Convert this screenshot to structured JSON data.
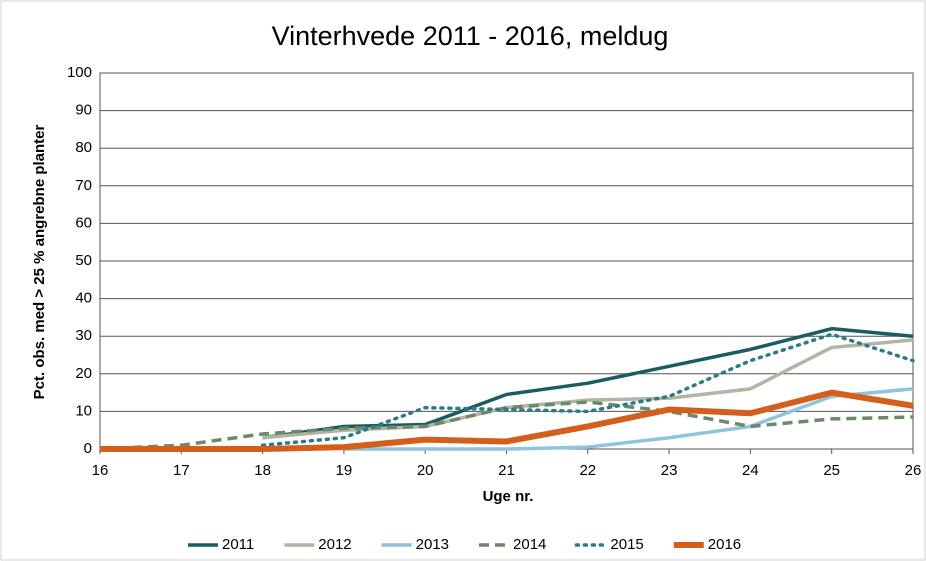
{
  "chart_data": {
    "type": "line",
    "title": "Vinterhvede 2011 - 2016, meldug",
    "x_label": "Uge nr.",
    "y_label": "Pct. obs. med > 25 % angrebne planter",
    "x": [
      16,
      17,
      18,
      19,
      20,
      21,
      22,
      23,
      24,
      25,
      26
    ],
    "xlim": [
      16,
      26
    ],
    "xticks": [
      16,
      17,
      18,
      19,
      20,
      21,
      22,
      23,
      24,
      25,
      26
    ],
    "ylim": [
      0,
      100
    ],
    "yticks": [
      0,
      10,
      20,
      30,
      40,
      50,
      60,
      70,
      80,
      90,
      100
    ],
    "grid": true,
    "legend": "bottom",
    "series": [
      {
        "name": "2011",
        "color": "#1b5c62",
        "style": "solid",
        "values": [
          null,
          null,
          3,
          6,
          6.5,
          14.5,
          17.5,
          22,
          26.5,
          32,
          30
        ]
      },
      {
        "name": "2012",
        "color": "#b4b4a4",
        "style": "solid",
        "values": [
          null,
          null,
          3,
          5,
          6,
          11,
          13,
          13.5,
          16,
          27,
          29
        ]
      },
      {
        "name": "2013",
        "color": "#8ec4dc",
        "style": "solid",
        "values": [
          null,
          null,
          null,
          0,
          0,
          0,
          0.5,
          3,
          6,
          14,
          16
        ]
      },
      {
        "name": "2014",
        "color": "#6b8a68",
        "style": "dashed",
        "values": [
          0,
          1,
          4,
          5.5,
          6,
          11,
          12.5,
          10,
          6,
          8,
          8.5
        ]
      },
      {
        "name": "2015",
        "color": "#2d7b88",
        "style": "dotted",
        "values": [
          null,
          null,
          1,
          3,
          11,
          10.5,
          10,
          14,
          23.5,
          30.5,
          23.5
        ]
      },
      {
        "name": "2016",
        "color": "#d45e1b",
        "style": "thick",
        "values": [
          0,
          0,
          0,
          0.5,
          2.5,
          2,
          6,
          10.5,
          9.5,
          15,
          11.5
        ]
      }
    ]
  }
}
